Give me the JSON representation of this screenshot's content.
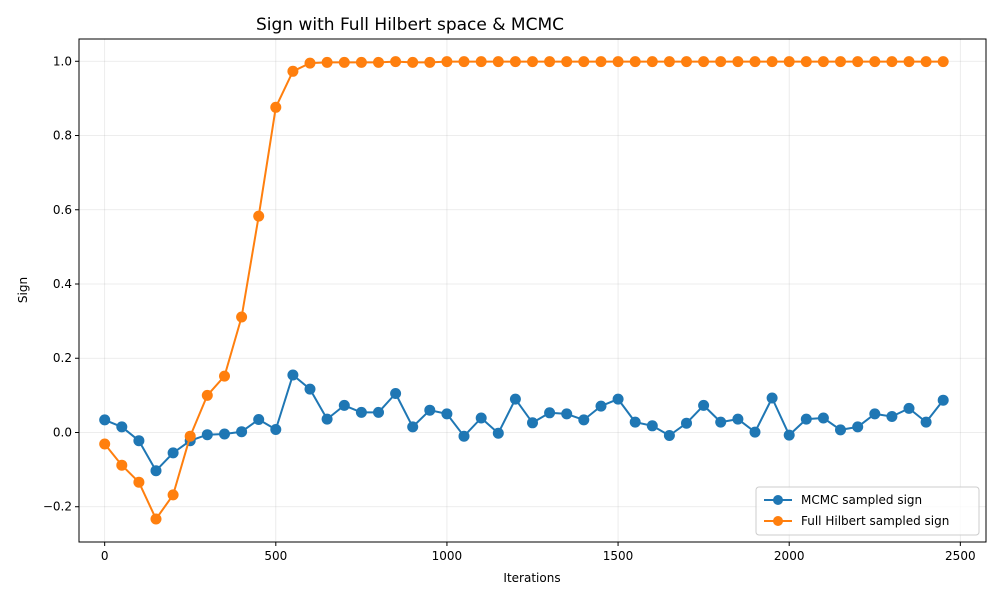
{
  "chart_data": {
    "type": "line",
    "title": "Sign with Full Hilbert space & MCMC",
    "xlabel": "Iterations",
    "ylabel": "Sign",
    "xlim": [
      -75,
      2575
    ],
    "ylim": [
      -0.295,
      1.06
    ],
    "xticks": [
      0,
      500,
      1000,
      1500,
      2000,
      2500
    ],
    "xtick_labels": [
      "0",
      "500",
      "1000",
      "1500",
      "2000",
      "2500"
    ],
    "yticks": [
      -0.2,
      0.0,
      0.2,
      0.4,
      0.6,
      0.8,
      1.0
    ],
    "ytick_labels": [
      "−0.2",
      "0.0",
      "0.2",
      "0.4",
      "0.6",
      "0.8",
      "1.0"
    ],
    "grid": true,
    "legend_position": "bottom-right",
    "x": [
      0,
      50,
      100,
      150,
      200,
      250,
      300,
      350,
      400,
      450,
      500,
      550,
      600,
      650,
      700,
      750,
      800,
      850,
      900,
      950,
      1000,
      1050,
      1100,
      1150,
      1200,
      1250,
      1300,
      1350,
      1400,
      1450,
      1500,
      1550,
      1600,
      1650,
      1700,
      1750,
      1800,
      1850,
      1900,
      1950,
      2000,
      2050,
      2100,
      2150,
      2200,
      2250,
      2300,
      2350,
      2400,
      2450
    ],
    "series": [
      {
        "name": "MCMC sampled sign",
        "color": "#1f77b4",
        "values": [
          0.034,
          0.015,
          -0.022,
          -0.103,
          -0.055,
          -0.022,
          -0.006,
          -0.004,
          0.002,
          0.035,
          0.008,
          0.155,
          0.117,
          0.036,
          0.073,
          0.054,
          0.054,
          0.105,
          0.015,
          0.06,
          0.05,
          -0.01,
          0.039,
          -0.002,
          0.09,
          0.026,
          0.053,
          0.05,
          0.034,
          0.071,
          0.09,
          0.028,
          0.018,
          -0.008,
          0.025,
          0.073,
          0.028,
          0.036,
          0.001,
          0.093,
          -0.007,
          0.036,
          0.039,
          0.007,
          0.015,
          0.05,
          0.043,
          0.065,
          0.028,
          0.087
        ]
      },
      {
        "name": "Full Hilbert sampled sign",
        "color": "#ff7f0e",
        "values": [
          -0.031,
          -0.088,
          -0.134,
          -0.233,
          -0.168,
          -0.01,
          0.1,
          0.152,
          0.311,
          0.583,
          0.876,
          0.973,
          0.995,
          0.997,
          0.997,
          0.997,
          0.997,
          0.999,
          0.997,
          0.997,
          0.999,
          0.999,
          0.999,
          0.999,
          0.999,
          0.999,
          0.999,
          0.999,
          0.999,
          0.999,
          0.999,
          0.999,
          0.999,
          0.999,
          0.999,
          0.999,
          0.999,
          0.999,
          0.999,
          0.999,
          0.999,
          0.999,
          0.999,
          0.999,
          0.999,
          0.999,
          0.999,
          0.999,
          0.999,
          0.999
        ]
      }
    ]
  }
}
